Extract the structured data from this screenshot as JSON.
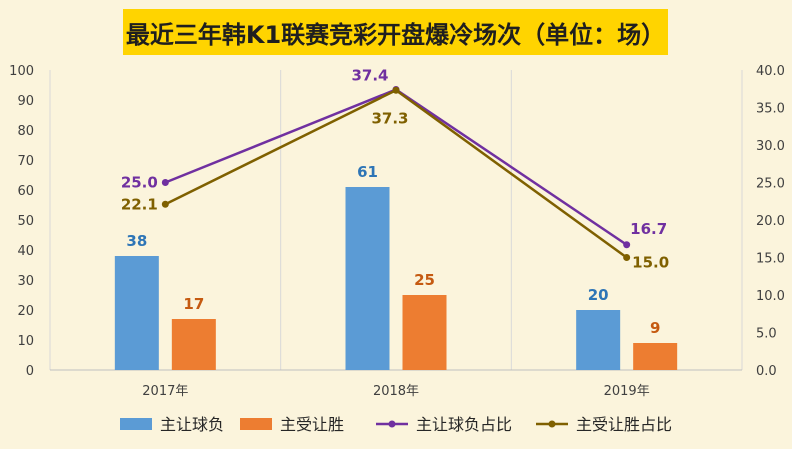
{
  "chart_data": {
    "type": "bar",
    "title": "最近三年韩K1联赛竞彩开盘爆冷场次（单位：场）",
    "categories": [
      "2017年",
      "2018年",
      "2019年"
    ],
    "series": [
      {
        "name": "主让球负",
        "kind": "bar",
        "axis": "left",
        "color": "#5b9bd5",
        "label_color": "#2e75b6",
        "values": [
          38,
          61,
          20
        ],
        "labels": [
          "38",
          "61",
          "20"
        ]
      },
      {
        "name": "主受让胜",
        "kind": "bar",
        "axis": "left",
        "color": "#ed7d31",
        "label_color": "#c55a11",
        "values": [
          17,
          25,
          9
        ],
        "labels": [
          "17",
          "25",
          "9"
        ]
      },
      {
        "name": "主让球负占比",
        "kind": "line",
        "axis": "right",
        "color": "#7030a0",
        "label_color": "#7030a0",
        "values": [
          25.0,
          37.4,
          16.7
        ],
        "labels": [
          "25.0",
          "37.4",
          "16.7"
        ]
      },
      {
        "name": "主受让胜占比",
        "kind": "line",
        "axis": "right",
        "color": "#7f6000",
        "label_color": "#7f6000",
        "values": [
          22.1,
          37.3,
          15.0
        ],
        "labels": [
          "22.1",
          "37.3",
          "15.0"
        ]
      }
    ],
    "y_left": {
      "min": 0,
      "max": 100,
      "step": 10,
      "ticks": [
        "0",
        "10",
        "20",
        "30",
        "40",
        "50",
        "60",
        "70",
        "80",
        "90",
        "100"
      ]
    },
    "y_right": {
      "min": 0,
      "max": 40,
      "step": 5,
      "ticks": [
        "0.0",
        "5.0",
        "10.0",
        "15.0",
        "20.0",
        "25.0",
        "30.0",
        "35.0",
        "40.0"
      ]
    },
    "grid": "vertical-category-separators",
    "legend": "bottom",
    "colors": {
      "background": "#fbf4dc",
      "title_bg": "#ffd400"
    }
  }
}
